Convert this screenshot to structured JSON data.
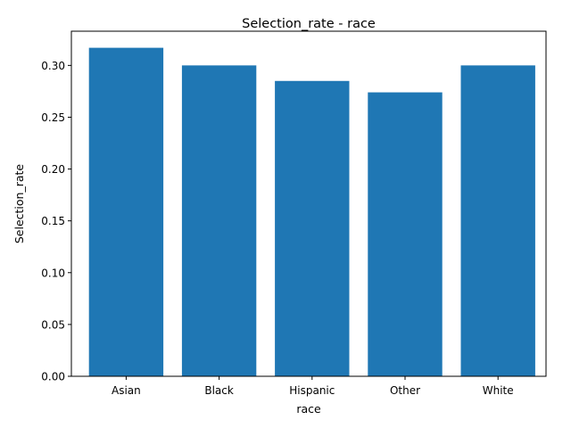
{
  "chart_data": {
    "type": "bar",
    "title": "Selection_rate - race",
    "xlabel": "race",
    "ylabel": "Selection_rate",
    "categories": [
      "Asian",
      "Black",
      "Hispanic",
      "Other",
      "White"
    ],
    "values": [
      0.317,
      0.3,
      0.285,
      0.274,
      0.3
    ],
    "ylim": [
      0,
      0.333
    ],
    "yticks": [
      "0.00",
      "0.05",
      "0.10",
      "0.15",
      "0.20",
      "0.25",
      "0.30"
    ],
    "bar_color": "#1f77b4",
    "grid": false,
    "legend": false
  }
}
